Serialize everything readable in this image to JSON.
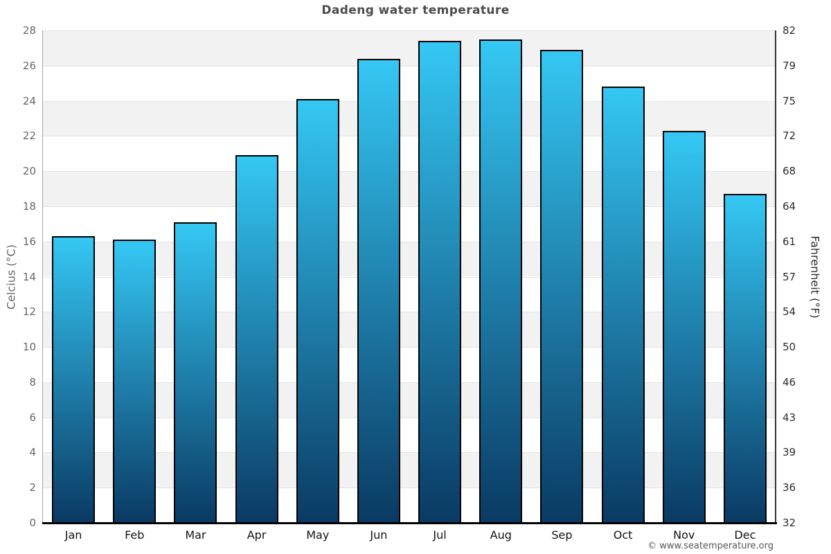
{
  "page": {
    "title": "Dadeng water temperature",
    "footer": "© www.seatemperature.org"
  },
  "chart_data": {
    "type": "bar",
    "title": "Dadeng water temperature",
    "categories": [
      "Jan",
      "Feb",
      "Mar",
      "Apr",
      "May",
      "Jun",
      "Jul",
      "Aug",
      "Sep",
      "Oct",
      "Nov",
      "Dec"
    ],
    "series": [
      {
        "name": "Water temperature",
        "unit": "°C",
        "values": [
          16.3,
          16.1,
          17.1,
          20.9,
          24.1,
          26.4,
          27.4,
          27.5,
          26.9,
          24.8,
          22.3,
          18.7
        ]
      }
    ],
    "ylabel": "Celcius (°C)",
    "ylabel_right": "Fahrenheit (°F)",
    "ylim": [
      0,
      28
    ],
    "yticks_celsius": [
      0,
      2,
      4,
      6,
      8,
      10,
      12,
      14,
      16,
      18,
      20,
      22,
      24,
      26,
      28
    ],
    "yticks_fahrenheit": [
      32,
      36,
      39,
      43,
      46,
      50,
      54,
      57,
      61,
      64,
      68,
      72,
      75,
      79,
      82
    ],
    "legend": "none",
    "grid": "horizontal gridlines every 2°C with alternating gray/white background bands",
    "colors": {
      "bar_top": "#35c7f4",
      "bar_bottom": "#0a3a63",
      "bar_border": "#000000",
      "band_gray": "#f2f2f2",
      "band_white": "#ffffff",
      "gridline": "#e3e3e3",
      "axis_bottom": "#000000",
      "left_spine": "#a6a6a6",
      "right_spine": "#333333",
      "title_text": "#4c4c4c",
      "left_axis_text": "#666666",
      "right_axis_text": "#2b2b2b",
      "month_text": "#111111",
      "footer_text": "#555555"
    }
  }
}
